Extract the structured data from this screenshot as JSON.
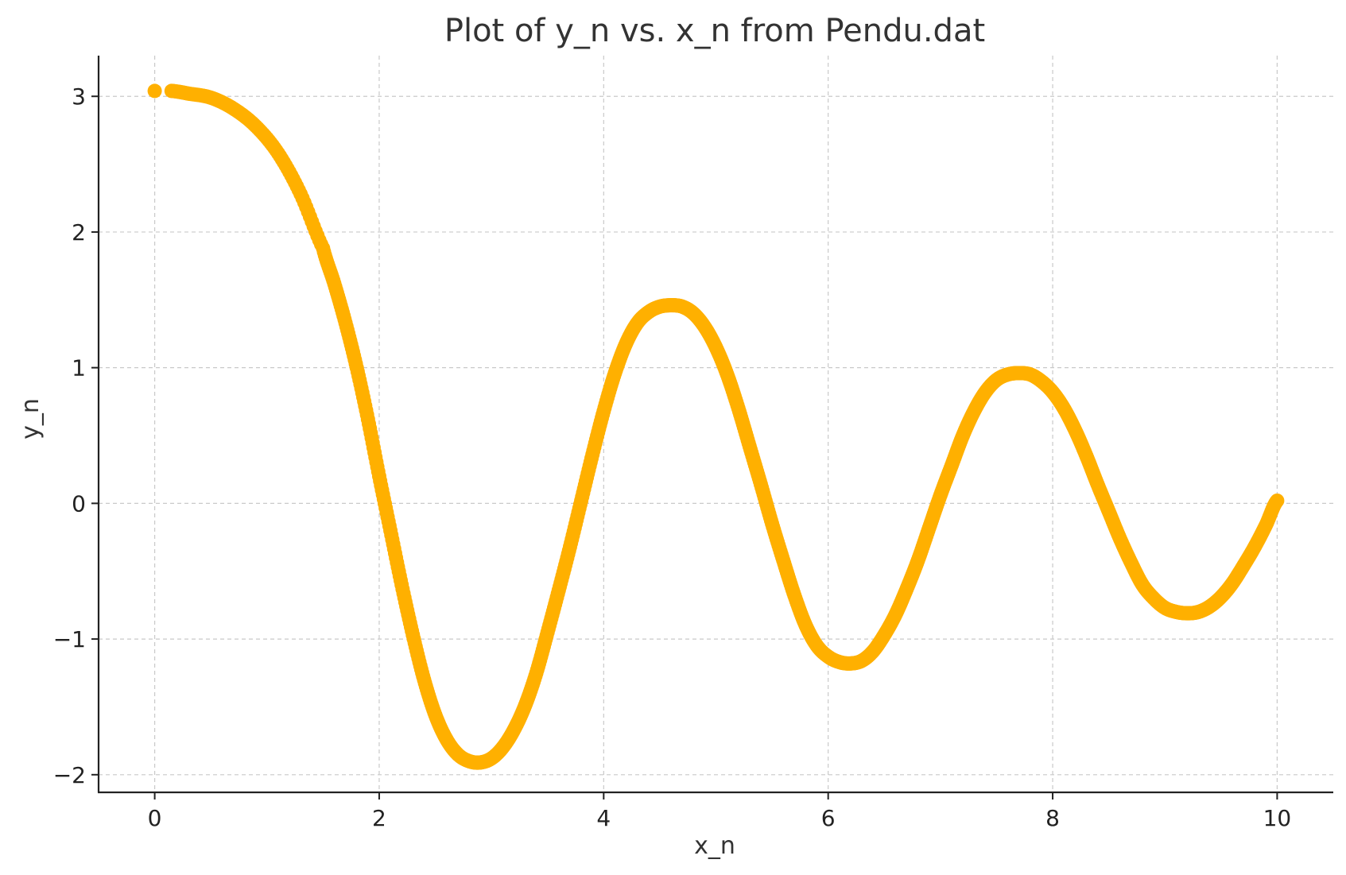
{
  "chart_data": {
    "type": "scatter",
    "title": "Plot of y_n vs. x_n from Pendu.dat",
    "xlabel": "x_n",
    "ylabel": "y_n",
    "xlim": [
      -0.5,
      10.5
    ],
    "ylim": [
      -2.13,
      3.3
    ],
    "xticks": [
      0,
      2,
      4,
      6,
      8,
      10
    ],
    "yticks": [
      -2,
      -1,
      0,
      1,
      2,
      3
    ],
    "xtick_labels": [
      "0",
      "2",
      "4",
      "6",
      "8",
      "10"
    ],
    "ytick_labels": [
      "−2",
      "−1",
      "0",
      "1",
      "2",
      "3"
    ],
    "grid": true,
    "legend": "none",
    "marker_color": "#FFB000",
    "series": [
      {
        "color": "#FFB000",
        "points": [
          [
            0.0,
            3.04
          ],
          [
            0.15,
            3.04
          ],
          [
            0.3,
            3.02
          ],
          [
            0.5,
            2.99
          ],
          [
            0.7,
            2.91
          ],
          [
            0.9,
            2.78
          ],
          [
            1.1,
            2.58
          ],
          [
            1.3,
            2.28
          ],
          [
            1.5,
            1.88
          ],
          [
            1.6,
            1.62
          ],
          [
            1.7,
            1.33
          ],
          [
            1.8,
            1.0
          ],
          [
            1.9,
            0.62
          ],
          [
            2.0,
            0.2
          ],
          [
            2.1,
            -0.2
          ],
          [
            2.2,
            -0.6
          ],
          [
            2.3,
            -0.97
          ],
          [
            2.4,
            -1.3
          ],
          [
            2.5,
            -1.56
          ],
          [
            2.6,
            -1.74
          ],
          [
            2.7,
            -1.85
          ],
          [
            2.8,
            -1.9
          ],
          [
            2.9,
            -1.91
          ],
          [
            3.0,
            -1.88
          ],
          [
            3.1,
            -1.8
          ],
          [
            3.2,
            -1.67
          ],
          [
            3.3,
            -1.49
          ],
          [
            3.4,
            -1.25
          ],
          [
            3.5,
            -0.95
          ],
          [
            3.6,
            -0.64
          ],
          [
            3.7,
            -0.32
          ],
          [
            3.8,
            0.02
          ],
          [
            3.9,
            0.36
          ],
          [
            4.0,
            0.68
          ],
          [
            4.1,
            0.96
          ],
          [
            4.2,
            1.18
          ],
          [
            4.3,
            1.33
          ],
          [
            4.4,
            1.41
          ],
          [
            4.5,
            1.45
          ],
          [
            4.6,
            1.46
          ],
          [
            4.7,
            1.45
          ],
          [
            4.8,
            1.4
          ],
          [
            4.9,
            1.3
          ],
          [
            5.0,
            1.15
          ],
          [
            5.1,
            0.95
          ],
          [
            5.2,
            0.7
          ],
          [
            5.3,
            0.42
          ],
          [
            5.4,
            0.14
          ],
          [
            5.5,
            -0.15
          ],
          [
            5.6,
            -0.42
          ],
          [
            5.7,
            -0.68
          ],
          [
            5.8,
            -0.9
          ],
          [
            5.9,
            -1.05
          ],
          [
            6.0,
            -1.13
          ],
          [
            6.1,
            -1.17
          ],
          [
            6.2,
            -1.18
          ],
          [
            6.3,
            -1.16
          ],
          [
            6.4,
            -1.09
          ],
          [
            6.5,
            -0.97
          ],
          [
            6.6,
            -0.82
          ],
          [
            6.7,
            -0.63
          ],
          [
            6.8,
            -0.42
          ],
          [
            6.9,
            -0.18
          ],
          [
            7.0,
            0.06
          ],
          [
            7.1,
            0.28
          ],
          [
            7.2,
            0.5
          ],
          [
            7.3,
            0.68
          ],
          [
            7.4,
            0.82
          ],
          [
            7.5,
            0.91
          ],
          [
            7.6,
            0.95
          ],
          [
            7.7,
            0.96
          ],
          [
            7.8,
            0.95
          ],
          [
            7.9,
            0.9
          ],
          [
            8.0,
            0.82
          ],
          [
            8.1,
            0.7
          ],
          [
            8.2,
            0.54
          ],
          [
            8.3,
            0.35
          ],
          [
            8.4,
            0.14
          ],
          [
            8.5,
            -0.06
          ],
          [
            8.6,
            -0.26
          ],
          [
            8.7,
            -0.44
          ],
          [
            8.8,
            -0.6
          ],
          [
            8.9,
            -0.7
          ],
          [
            9.0,
            -0.77
          ],
          [
            9.1,
            -0.8
          ],
          [
            9.2,
            -0.81
          ],
          [
            9.3,
            -0.8
          ],
          [
            9.4,
            -0.76
          ],
          [
            9.5,
            -0.69
          ],
          [
            9.6,
            -0.59
          ],
          [
            9.7,
            -0.46
          ],
          [
            9.8,
            -0.32
          ],
          [
            9.9,
            -0.16
          ],
          [
            10.0,
            0.02
          ]
        ]
      }
    ]
  }
}
